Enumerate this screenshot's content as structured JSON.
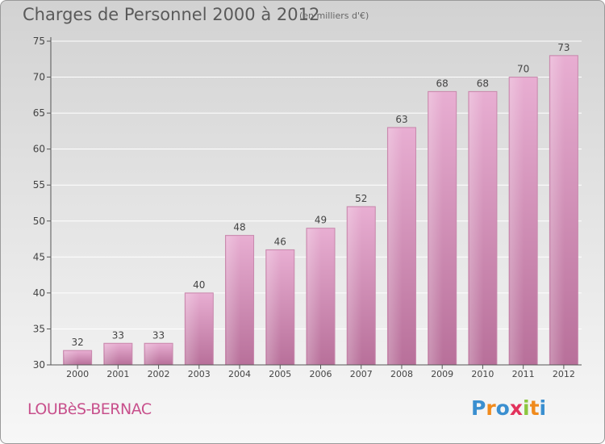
{
  "title": "Charges de Personnel 2000 à 2012",
  "subtitle": "(en milliers d'€)",
  "commune": "LOUBèS-BERNAC",
  "brand": {
    "letters": [
      "P",
      "r",
      "o",
      "x",
      "i",
      "t",
      "i"
    ],
    "colors": [
      "#3a8fd0",
      "#f08a1c",
      "#3a8fd0",
      "#e2325c",
      "#8cc63f",
      "#f08a1c",
      "#3a8fd0"
    ]
  },
  "colors": {
    "bar": "#d890b8",
    "bar_top": "#e8aed0",
    "axis": "#555555"
  },
  "chart_data": {
    "type": "bar",
    "title": "Charges de Personnel 2000 à 2012",
    "subtitle": "(en milliers d'€)",
    "categories": [
      "2000",
      "2001",
      "2002",
      "2003",
      "2004",
      "2005",
      "2006",
      "2007",
      "2008",
      "2009",
      "2010",
      "2011",
      "2012"
    ],
    "values": [
      32,
      33,
      33,
      40,
      48,
      46,
      49,
      52,
      63,
      68,
      68,
      70,
      73
    ],
    "ylim": [
      30,
      75
    ],
    "yticks": [
      30,
      35,
      40,
      45,
      50,
      55,
      60,
      65,
      70,
      75
    ],
    "grid": true
  }
}
